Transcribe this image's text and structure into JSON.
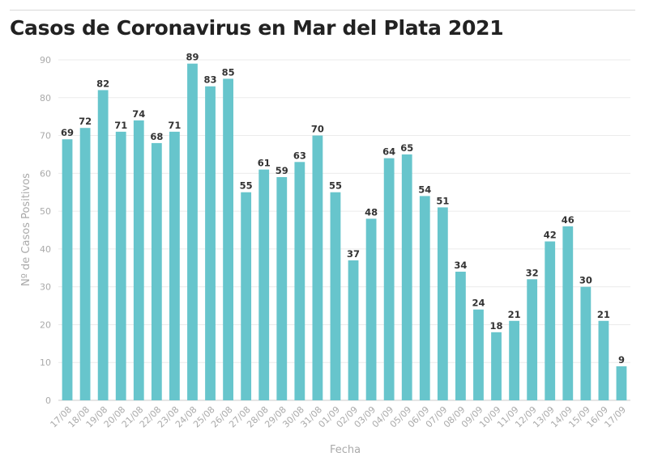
{
  "title": "Casos de Coronavirus en Mar del Plata 2021",
  "colors": {
    "bar": "#67c5cc",
    "grid": "#ebebeb",
    "axis": "#cccccc"
  },
  "chart_data": {
    "type": "bar",
    "title": "Casos de Coronavirus en Mar del Plata 2021",
    "xlabel": "Fecha",
    "ylabel": "Nº de Casos Positivos",
    "ylim": [
      0,
      90
    ],
    "yticks": [
      0,
      10,
      20,
      30,
      40,
      50,
      60,
      70,
      80,
      90
    ],
    "grid": true,
    "categories": [
      "17/08",
      "18/08",
      "19/08",
      "20/08",
      "21/08",
      "22/08",
      "23/08",
      "24/08",
      "25/08",
      "26/08",
      "27/08",
      "28/08",
      "29/08",
      "30/08",
      "31/08",
      "01/09",
      "02/09",
      "03/09",
      "04/09",
      "05/09",
      "06/09",
      "07/09",
      "08/09",
      "09/09",
      "10/09",
      "11/09",
      "12/09",
      "13/09",
      "14/09",
      "15/09",
      "16/09",
      "17/09"
    ],
    "values": [
      69,
      72,
      82,
      71,
      74,
      68,
      71,
      89,
      83,
      85,
      55,
      61,
      59,
      63,
      70,
      55,
      37,
      48,
      64,
      65,
      54,
      51,
      34,
      24,
      18,
      21,
      32,
      42,
      46,
      30,
      21,
      9
    ]
  }
}
